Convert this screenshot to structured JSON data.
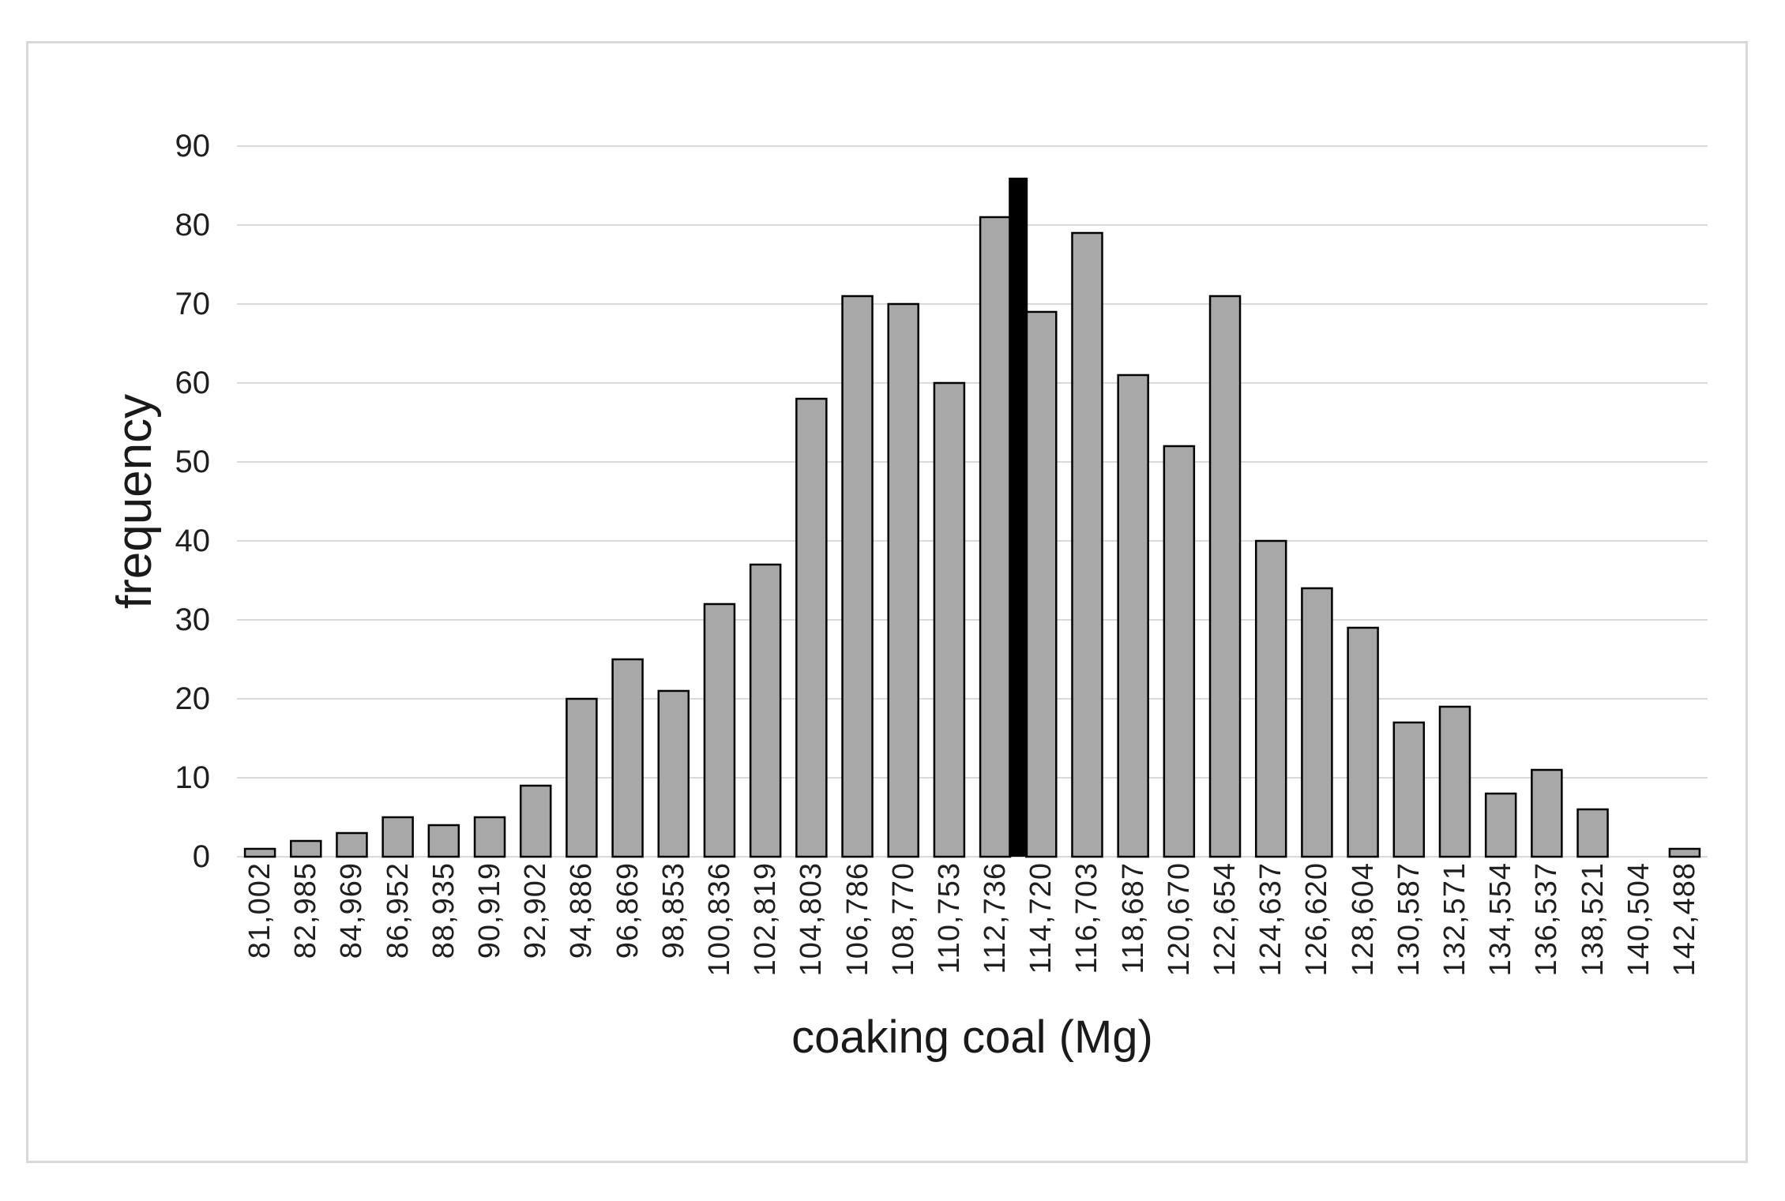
{
  "chart_data": {
    "type": "bar",
    "subtype": "histogram",
    "title": "",
    "xlabel": "coaking coal (Mg)",
    "ylabel": "frequency",
    "categories": [
      "81,002",
      "82,985",
      "84,969",
      "86,952",
      "88,935",
      "90,919",
      "92,902",
      "94,886",
      "96,869",
      "98,853",
      "100,836",
      "102,819",
      "104,803",
      "106,786",
      "108,770",
      "110,753",
      "112,736",
      "114,720",
      "116,703",
      "118,687",
      "120,670",
      "122,654",
      "124,637",
      "126,620",
      "128,604",
      "130,587",
      "132,571",
      "134,554",
      "136,537",
      "138,521",
      "140,504",
      "142,488"
    ],
    "values": [
      1,
      2,
      3,
      5,
      4,
      5,
      9,
      20,
      25,
      21,
      32,
      37,
      58,
      71,
      70,
      60,
      81,
      69,
      79,
      61,
      52,
      71,
      40,
      34,
      29,
      17,
      19,
      8,
      11,
      6,
      0,
      1
    ],
    "marker": {
      "description": "narrow solid black highlight bar",
      "value": 86,
      "position_between": [
        "112,736",
        "114,720"
      ],
      "color": "#000000"
    },
    "ylim": [
      0,
      90
    ],
    "yticks": [
      0,
      10,
      20,
      30,
      40,
      50,
      60,
      70,
      80,
      90
    ],
    "grid": "horizontal",
    "legend": "none",
    "colors": {
      "bar_fill": "#a8a8a8",
      "bar_border": "#000000",
      "gridline": "#d9d9d9",
      "frame_border": "#d9d9d9",
      "background": "#ffffff",
      "text": "#1f1f1f"
    }
  }
}
